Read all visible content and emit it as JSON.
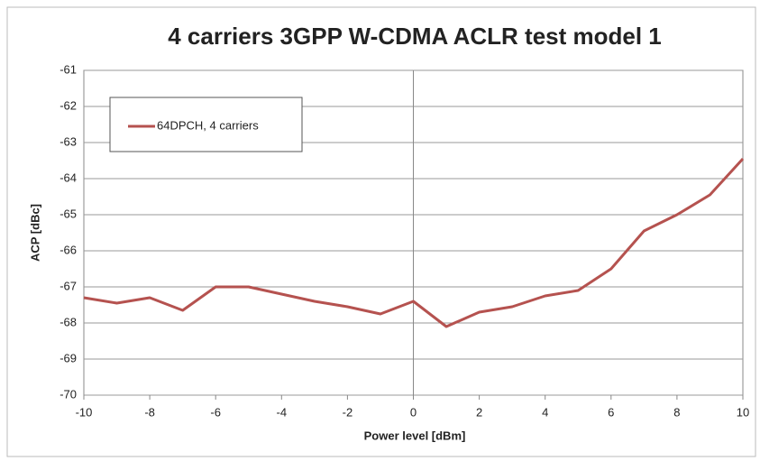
{
  "chart_data": {
    "type": "line",
    "title": "4 carriers 3GPP W-CDMA ACLR test model 1",
    "x_label": "Power level [dBm]",
    "y_label": "ACP [dBc]",
    "x": [
      -10,
      -9,
      -8,
      -7,
      -6,
      -5,
      -4,
      -3,
      -2,
      -1,
      0,
      1,
      2,
      3,
      4,
      5,
      6,
      7,
      8,
      9,
      10
    ],
    "series": [
      {
        "name": "64DPCH, 4 carriers",
        "color": "#b5524f",
        "values": [
          -67.3,
          -67.45,
          -67.3,
          -67.65,
          -67.0,
          -67.0,
          -67.2,
          -67.4,
          -67.55,
          -67.75,
          -67.4,
          -68.1,
          -67.7,
          -67.55,
          -67.25,
          -67.1,
          -66.5,
          -65.45,
          -65.0,
          -64.45,
          -63.45
        ]
      }
    ],
    "xlim": [
      -10,
      10
    ],
    "xticks": [
      -10,
      -8,
      -6,
      -4,
      -2,
      0,
      2,
      4,
      6,
      8,
      10
    ],
    "ylim": [
      -70,
      -61
    ],
    "yticks": [
      -70,
      -69,
      -68,
      -67,
      -66,
      -65,
      -64,
      -63,
      -62,
      -61
    ],
    "grid": true,
    "legend": "upper left"
  }
}
